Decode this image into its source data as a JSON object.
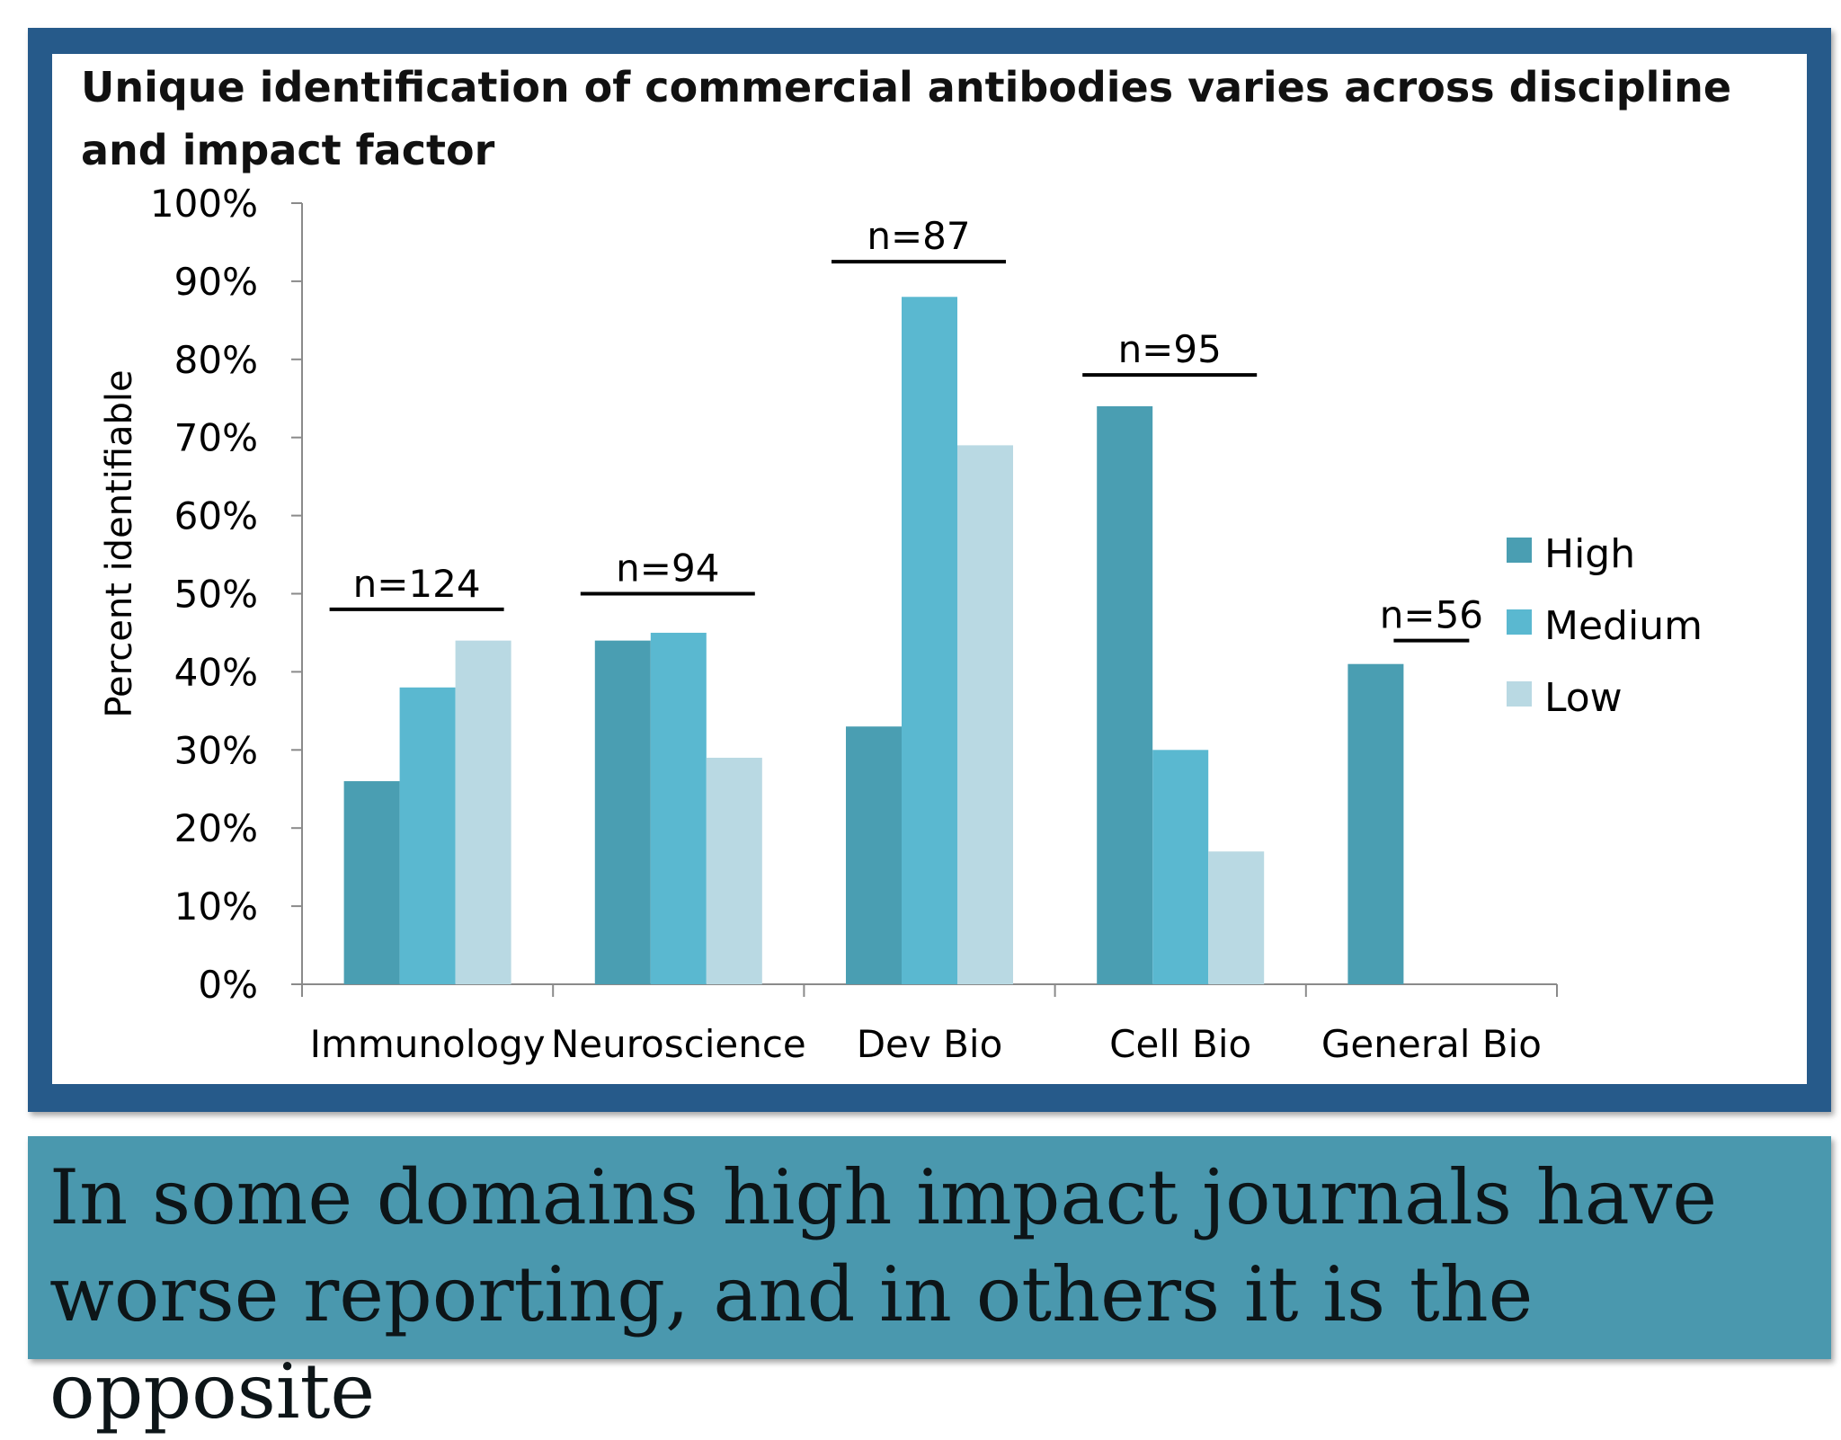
{
  "chart_data": {
    "type": "bar",
    "title": "Unique identification of commercial antibodies varies across discipline and impact factor",
    "ylabel": "Percent identifiable",
    "xlabel": "",
    "ylim": [
      0,
      100
    ],
    "yticks": [
      "0%",
      "10%",
      "20%",
      "30%",
      "40%",
      "50%",
      "60%",
      "70%",
      "80%",
      "90%",
      "100%"
    ],
    "categories": [
      "Immunology",
      "Neuroscience",
      "Dev Bio",
      "Cell Bio",
      "General Bio"
    ],
    "series": [
      {
        "name": "High",
        "color": "#4a9eb2",
        "values": [
          26,
          44,
          33,
          74,
          41
        ]
      },
      {
        "name": "Medium",
        "color": "#5ab8d0",
        "values": [
          38,
          45,
          88,
          30,
          null
        ]
      },
      {
        "name": "Low",
        "color": "#b9d9e3",
        "values": [
          44,
          29,
          69,
          17,
          null
        ]
      }
    ],
    "annotations": [
      {
        "category": "Immunology",
        "text": "n=124",
        "level": 48
      },
      {
        "category": "Neuroscience",
        "text": "n=94",
        "level": 50
      },
      {
        "category": "Dev Bio",
        "text": "n=87",
        "level": 92.5
      },
      {
        "category": "Cell Bio",
        "text": "n=95",
        "level": 78
      },
      {
        "category": "General Bio",
        "text": "n=56",
        "level": 44
      }
    ],
    "legend_position": "right",
    "grid": false
  },
  "caption": "In some domains high impact journals have worse reporting, and in others it is the opposite",
  "colors": {
    "frame": "#265a8a",
    "caption_box": "#4a98ae"
  }
}
